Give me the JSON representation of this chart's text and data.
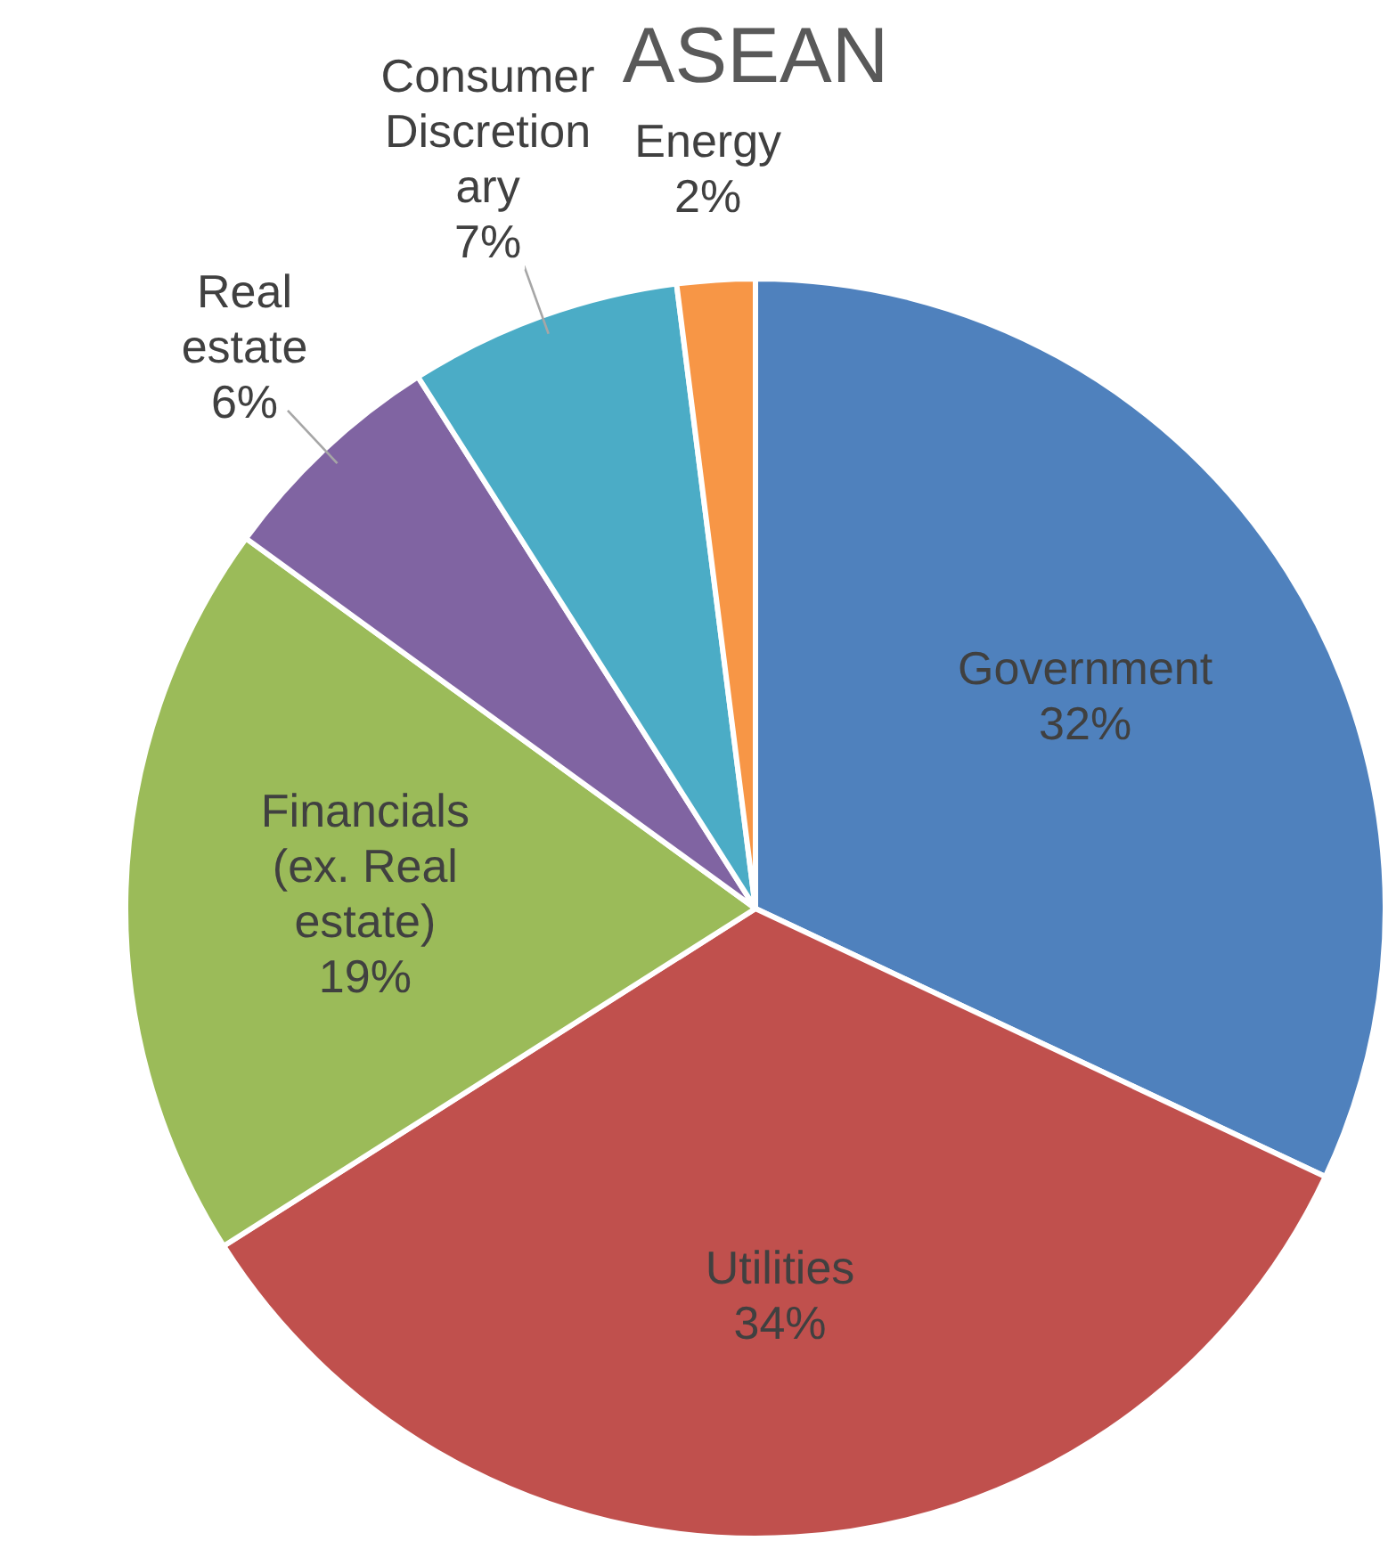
{
  "chart_data": {
    "type": "pie",
    "title": "ASEAN",
    "categories": [
      "Government",
      "Utilities",
      "Financials (ex. Real estate)",
      "Real estate",
      "Consumer Discretionary",
      "Energy"
    ],
    "values": [
      32,
      34,
      19,
      6,
      7,
      2
    ],
    "colors": [
      "#4f81bd",
      "#c0504d",
      "#9bbb59",
      "#8064a2",
      "#4bacc6",
      "#f79646"
    ],
    "value_labels": [
      "32%",
      "34%",
      "19%",
      "6%",
      "7%",
      "2%"
    ],
    "legend": false
  }
}
